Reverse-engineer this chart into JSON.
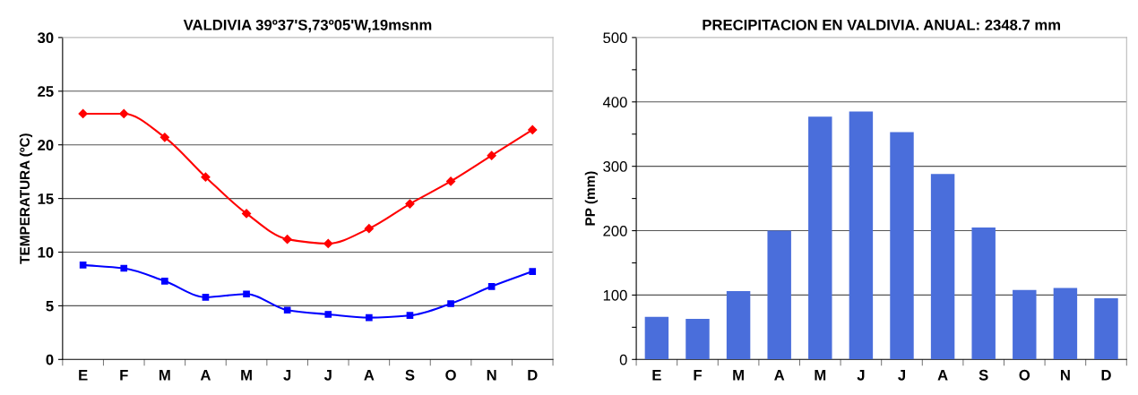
{
  "chart_data": [
    {
      "type": "line",
      "title": "VALDIVIA 39º37'S,73º05'W,19msnm",
      "ylabel": "TEMPERATURA (ºC)",
      "categories": [
        "E",
        "F",
        "M",
        "A",
        "M",
        "J",
        "J",
        "A",
        "S",
        "O",
        "N",
        "D"
      ],
      "series": [
        {
          "color": "#ff0000",
          "marker": "diamond",
          "values": [
            22.9,
            22.9,
            20.7,
            17.0,
            13.6,
            11.2,
            10.8,
            12.2,
            14.5,
            16.6,
            19.0,
            21.4
          ]
        },
        {
          "color": "#0000ff",
          "marker": "square",
          "values": [
            8.8,
            8.5,
            7.3,
            5.8,
            6.1,
            4.6,
            4.2,
            3.9,
            4.1,
            5.2,
            6.8,
            8.2
          ]
        }
      ],
      "ylim": [
        0,
        30
      ],
      "yticks": [
        0,
        5,
        10,
        15,
        20,
        25,
        30
      ],
      "grid": "y",
      "legend": false
    },
    {
      "type": "bar",
      "title": "PRECIPITACION EN VALDIVIA. ANUAL: 2348.7 mm",
      "ylabel": "PP (mm)",
      "categories": [
        "E",
        "F",
        "M",
        "A",
        "M",
        "J",
        "J",
        "A",
        "S",
        "O",
        "N",
        "D"
      ],
      "values": [
        66,
        63,
        106,
        200,
        377,
        385,
        353,
        288,
        205,
        108,
        111,
        95
      ],
      "color": "#4a6edb",
      "ylim": [
        0,
        500
      ],
      "yticks": [
        0,
        {
          "value": 50,
          "label": null
        },
        100,
        {
          "value": 150,
          "label": null
        },
        200,
        {
          "value": 250,
          "label": null
        },
        300,
        {
          "value": 350,
          "label": null
        },
        400,
        {
          "value": 450,
          "label": null
        },
        500
      ],
      "grid": "y",
      "legend": false
    }
  ]
}
